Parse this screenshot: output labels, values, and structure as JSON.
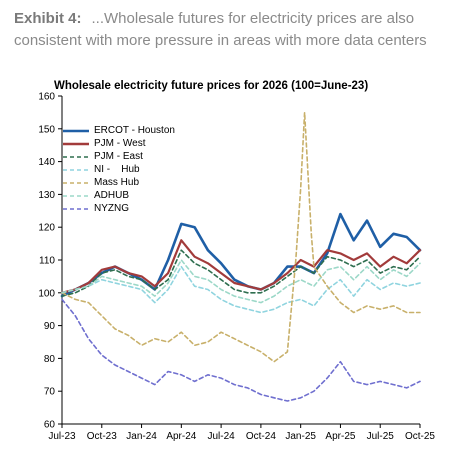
{
  "exhibit": {
    "label": "Exhibit 4:",
    "caption": "...Wholesale futures for electricity prices are also consistent with more pressure in areas with more data centers"
  },
  "chart_data": {
    "type": "line",
    "title": "Wholesale electricity future prices for 2026 (100=June-23)",
    "xlabel": "",
    "ylabel": "",
    "ylim": [
      60,
      160
    ],
    "yticks": [
      60,
      70,
      80,
      90,
      100,
      110,
      120,
      130,
      140,
      150,
      160
    ],
    "xlim": [
      "2023-07",
      "2025-10"
    ],
    "xticks": [
      "Jul-23",
      "Oct-23",
      "Jan-24",
      "Apr-24",
      "Jul-24",
      "Oct-24",
      "Jan-25",
      "Apr-25",
      "Jul-25",
      "Oct-25"
    ],
    "grid": false,
    "legend": "top-left",
    "series": [
      {
        "name": "ERCOT - Houston",
        "color": "#1f5fa6",
        "style": "solid",
        "width": 2.6,
        "x": [
          "2023-07",
          "2023-08",
          "2023-09",
          "2023-10",
          "2023-11",
          "2023-12",
          "2024-01",
          "2024-02",
          "2024-03",
          "2024-04",
          "2024-05",
          "2024-06",
          "2024-07",
          "2024-08",
          "2024-09",
          "2024-10",
          "2024-11",
          "2024-12",
          "2025-01",
          "2025-02",
          "2025-03",
          "2025-04",
          "2025-05",
          "2025-06",
          "2025-07",
          "2025-08",
          "2025-09",
          "2025-10"
        ],
        "y": [
          99,
          101,
          103,
          106,
          108,
          106,
          104,
          101,
          110,
          121,
          120,
          113,
          109,
          104,
          102,
          101,
          103,
          108,
          108,
          106,
          112,
          124,
          116,
          122,
          114,
          118,
          117,
          113
        ]
      },
      {
        "name": "PJM - West",
        "color": "#a23b3b",
        "style": "solid",
        "width": 2.2,
        "x": [
          "2023-07",
          "2023-08",
          "2023-09",
          "2023-10",
          "2023-11",
          "2023-12",
          "2024-01",
          "2024-02",
          "2024-03",
          "2024-04",
          "2024-05",
          "2024-06",
          "2024-07",
          "2024-08",
          "2024-09",
          "2024-10",
          "2024-11",
          "2024-12",
          "2025-01",
          "2025-02",
          "2025-03",
          "2025-04",
          "2025-05",
          "2025-06",
          "2025-07",
          "2025-08",
          "2025-09",
          "2025-10"
        ],
        "y": [
          100,
          101,
          103,
          107,
          108,
          106,
          105,
          102,
          106,
          116,
          111,
          109,
          106,
          103,
          102,
          101,
          103,
          106,
          110,
          108,
          113,
          112,
          110,
          112,
          108,
          111,
          109,
          113
        ]
      },
      {
        "name": "PJM - East",
        "color": "#2e6e4f",
        "style": "dashed",
        "width": 1.6,
        "x": [
          "2023-07",
          "2023-08",
          "2023-09",
          "2023-10",
          "2023-11",
          "2023-12",
          "2024-01",
          "2024-02",
          "2024-03",
          "2024-04",
          "2024-05",
          "2024-06",
          "2024-07",
          "2024-08",
          "2024-09",
          "2024-10",
          "2024-11",
          "2024-12",
          "2025-01",
          "2025-02",
          "2025-03",
          "2025-04",
          "2025-05",
          "2025-06",
          "2025-07",
          "2025-08",
          "2025-09",
          "2025-10"
        ],
        "y": [
          99,
          100,
          102,
          106,
          107,
          105,
          104,
          101,
          104,
          113,
          109,
          107,
          104,
          101,
          100,
          100,
          102,
          105,
          108,
          106,
          111,
          110,
          108,
          110,
          106,
          108,
          107,
          111
        ]
      },
      {
        "name": "NI -    Hub",
        "color": "#8fd4df",
        "style": "dashed",
        "width": 1.6,
        "x": [
          "2023-07",
          "2023-08",
          "2023-09",
          "2023-10",
          "2023-11",
          "2023-12",
          "2024-01",
          "2024-02",
          "2024-03",
          "2024-04",
          "2024-05",
          "2024-06",
          "2024-07",
          "2024-08",
          "2024-09",
          "2024-10",
          "2024-11",
          "2024-12",
          "2025-01",
          "2025-02",
          "2025-03",
          "2025-04",
          "2025-05",
          "2025-06",
          "2025-07",
          "2025-08",
          "2025-09",
          "2025-10"
        ],
        "y": [
          100,
          101,
          102,
          104,
          103,
          102,
          101,
          97,
          101,
          108,
          102,
          101,
          98,
          96,
          95,
          94,
          95,
          97,
          98,
          96,
          101,
          104,
          99,
          104,
          101,
          103,
          102,
          103
        ]
      },
      {
        "name": "Mass Hub",
        "color": "#c8b06a",
        "style": "dashed",
        "width": 1.6,
        "x": [
          "2023-07",
          "2023-08",
          "2023-09",
          "2023-10",
          "2023-11",
          "2023-12",
          "2024-01",
          "2024-02",
          "2024-03",
          "2024-04",
          "2024-05",
          "2024-06",
          "2024-07",
          "2024-08",
          "2024-09",
          "2024-10",
          "2024-11",
          "2024-12",
          "2024-12-20",
          "2025-01",
          "2025-01-10",
          "2025-01-25",
          "2025-02",
          "2025-03",
          "2025-04",
          "2025-05",
          "2025-06",
          "2025-07",
          "2025-08",
          "2025-09",
          "2025-10"
        ],
        "y": [
          100,
          98,
          97,
          93,
          89,
          87,
          84,
          86,
          85,
          88,
          84,
          85,
          88,
          86,
          84,
          82,
          79,
          82,
          110,
          132,
          155,
          118,
          108,
          102,
          97,
          94,
          96,
          95,
          96,
          94,
          94
        ]
      },
      {
        "name": "ADHUB",
        "color": "#9cd8c8",
        "style": "dashed",
        "width": 1.6,
        "x": [
          "2023-07",
          "2023-08",
          "2023-09",
          "2023-10",
          "2023-11",
          "2023-12",
          "2024-01",
          "2024-02",
          "2024-03",
          "2024-04",
          "2024-05",
          "2024-06",
          "2024-07",
          "2024-08",
          "2024-09",
          "2024-10",
          "2024-11",
          "2024-12",
          "2025-01",
          "2025-02",
          "2025-03",
          "2025-04",
          "2025-05",
          "2025-06",
          "2025-07",
          "2025-08",
          "2025-09",
          "2025-10"
        ],
        "y": [
          100,
          101,
          102,
          105,
          104,
          103,
          102,
          99,
          103,
          110,
          105,
          104,
          101,
          99,
          98,
          97,
          99,
          102,
          104,
          102,
          107,
          108,
          104,
          108,
          104,
          107,
          105,
          109
        ]
      },
      {
        "name": "NYZNG",
        "color": "#6f6fcf",
        "style": "dashed",
        "width": 1.6,
        "x": [
          "2023-07",
          "2023-08",
          "2023-09",
          "2023-10",
          "2023-11",
          "2023-12",
          "2024-01",
          "2024-02",
          "2024-03",
          "2024-04",
          "2024-05",
          "2024-06",
          "2024-07",
          "2024-08",
          "2024-09",
          "2024-10",
          "2024-11",
          "2024-12",
          "2025-01",
          "2025-02",
          "2025-03",
          "2025-04",
          "2025-05",
          "2025-06",
          "2025-07",
          "2025-08",
          "2025-09",
          "2025-10"
        ],
        "y": [
          98,
          93,
          86,
          81,
          78,
          76,
          74,
          72,
          76,
          75,
          73,
          75,
          74,
          72,
          71,
          69,
          68,
          67,
          68,
          70,
          74,
          79,
          73,
          72,
          73,
          72,
          71,
          73
        ]
      }
    ]
  }
}
